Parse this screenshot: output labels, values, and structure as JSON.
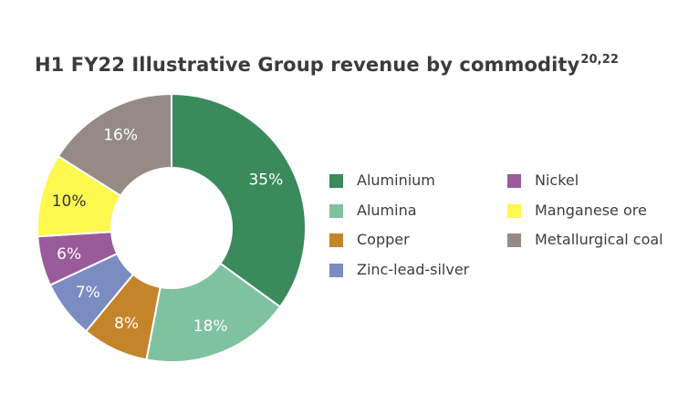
{
  "title": "H1 FY22 Illustrative Group revenue by commodity",
  "title_superscript": "20,22",
  "chart_data": {
    "type": "pie",
    "categories": [
      "Aluminium",
      "Alumina",
      "Copper",
      "Zinc-lead-silver",
      "Nickel",
      "Manganese ore",
      "Metallurgical coal"
    ],
    "values": [
      35,
      18,
      8,
      7,
      6,
      10,
      16
    ],
    "value_labels": [
      "35%",
      "18%",
      "8%",
      "7%",
      "6%",
      "10%",
      "16%"
    ],
    "colors": [
      "#3a8a5c",
      "#7fc29f",
      "#c4852a",
      "#7b8cc2",
      "#9a5b9a",
      "#fef84f",
      "#958b84"
    ],
    "donut": true,
    "legend_placement": "right"
  },
  "legend": {
    "left_column": [
      "Aluminium",
      "Alumina",
      "Copper",
      "Zinc-lead-silver"
    ],
    "right_column": [
      "Nickel",
      "Manganese ore",
      "Metallurgical coal"
    ]
  }
}
